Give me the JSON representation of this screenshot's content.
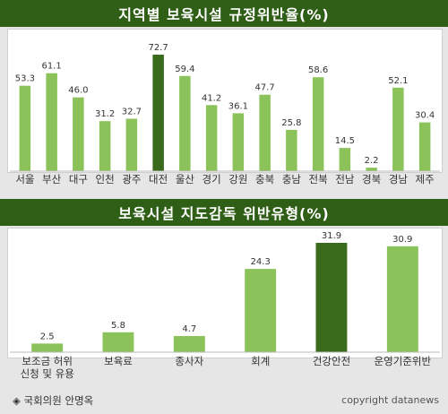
{
  "footer": {
    "source_marker": "◈",
    "source": "국회의원 안명옥",
    "copyright": "copyright datanews"
  },
  "colors": {
    "bar": "#8cc25a",
    "highlight": "#3a6a1c",
    "title_bg": "#2f5e16"
  },
  "chart_data": [
    {
      "type": "bar",
      "title": "지역별 보육시설 규정위반율(%)",
      "categories": [
        "서울",
        "부산",
        "대구",
        "인천",
        "광주",
        "대전",
        "울산",
        "경기",
        "강원",
        "충북",
        "충남",
        "전북",
        "전남",
        "경북",
        "경남",
        "제주"
      ],
      "values": [
        53.3,
        61.1,
        46.0,
        31.2,
        32.7,
        72.7,
        59.4,
        41.2,
        36.1,
        47.7,
        25.8,
        58.6,
        14.5,
        2.2,
        52.1,
        30.4
      ],
      "value_labels": [
        "53.3",
        "61.1",
        "46.0",
        "31.2",
        "32.7",
        "72.7",
        "59.4",
        "41.2",
        "36.1",
        "47.7",
        "25.8",
        "58.6",
        "14.5",
        "2.2",
        "52.1",
        "30.4"
      ],
      "highlight": [
        "대전"
      ],
      "ylim": [
        0,
        72.7
      ]
    },
    {
      "type": "bar",
      "title": "보육시설 지도감독 위반유형(%)",
      "categories": [
        [
          "보조금 허위",
          "신청 및 유용"
        ],
        [
          "보육료"
        ],
        [
          "종사자"
        ],
        [
          "회계"
        ],
        [
          "건강안전"
        ],
        [
          "운영기준위반"
        ]
      ],
      "values": [
        2.5,
        5.8,
        4.7,
        24.3,
        31.9,
        30.9
      ],
      "value_labels": [
        "2.5",
        "5.8",
        "4.7",
        "24.3",
        "31.9",
        "30.9"
      ],
      "highlight": [
        "건강안전"
      ],
      "ylim": [
        0,
        31.9
      ]
    }
  ]
}
